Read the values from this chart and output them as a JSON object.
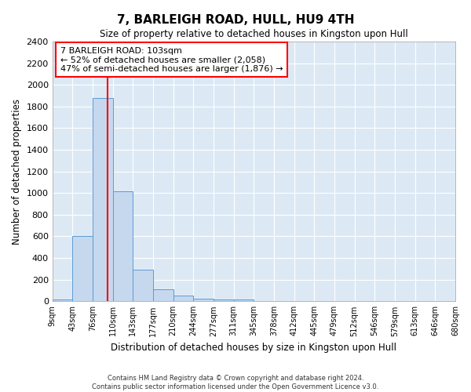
{
  "title": "7, BARLEIGH ROAD, HULL, HU9 4TH",
  "subtitle": "Size of property relative to detached houses in Kingston upon Hull",
  "xlabel": "Distribution of detached houses by size in Kingston upon Hull",
  "ylabel": "Number of detached properties",
  "bar_color": "#c5d8ee",
  "bar_edge_color": "#5b9bd5",
  "background_color": "#dce9f5",
  "grid_color": "white",
  "bar_heights": [
    20,
    600,
    1880,
    1020,
    295,
    110,
    50,
    25,
    20,
    20,
    0,
    0,
    0,
    0,
    0,
    0,
    0,
    0,
    0,
    0
  ],
  "property_size_bar_index": 2.75,
  "annotation_text": "7 BARLEIGH ROAD: 103sqm\n← 52% of detached houses are smaller (2,058)\n47% of semi-detached houses are larger (1,876) →",
  "annotation_box_color": "white",
  "annotation_border_color": "red",
  "red_line_color": "red",
  "ylim": [
    0,
    2400
  ],
  "yticks": [
    0,
    200,
    400,
    600,
    800,
    1000,
    1200,
    1400,
    1600,
    1800,
    2000,
    2200,
    2400
  ],
  "tick_labels": [
    "9sqm",
    "43sqm",
    "76sqm",
    "110sqm",
    "143sqm",
    "177sqm",
    "210sqm",
    "244sqm",
    "277sqm",
    "311sqm",
    "345sqm",
    "378sqm",
    "412sqm",
    "445sqm",
    "479sqm",
    "512sqm",
    "546sqm",
    "579sqm",
    "613sqm",
    "646sqm",
    "680sqm"
  ],
  "footer_line1": "Contains HM Land Registry data © Crown copyright and database right 2024.",
  "footer_line2": "Contains public sector information licensed under the Open Government Licence v3.0.",
  "n_bars": 20
}
